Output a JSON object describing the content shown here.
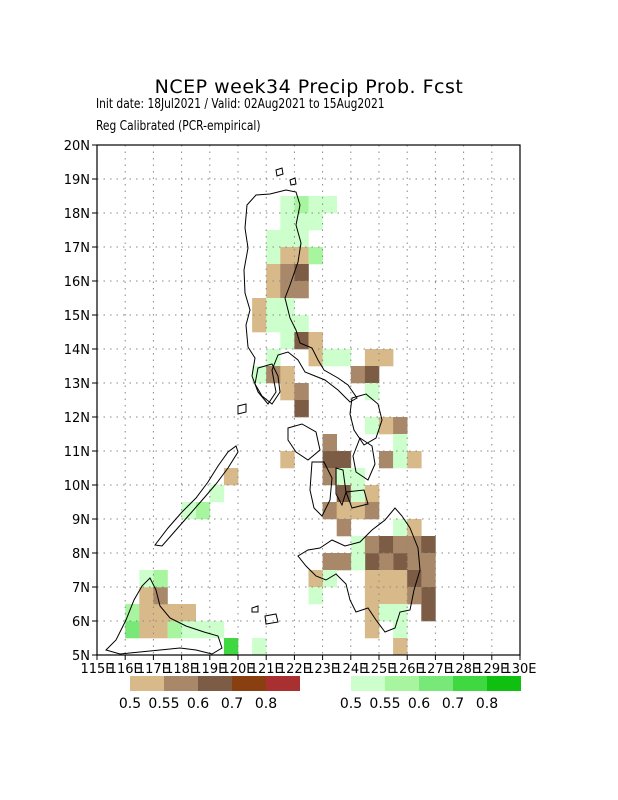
{
  "title": "NCEP week34 Precip Prob. Fcst",
  "subtitle_dates": "Init date: 18Jul2021 / Valid: 02Aug2021 to 15Aug2021",
  "subtitle_method": "Reg Calibrated (PCR-empirical)",
  "y_ticks": [
    "20N",
    "19N",
    "18N",
    "17N",
    "16N",
    "15N",
    "14N",
    "13N",
    "12N",
    "11N",
    "10N",
    "9N",
    "8N",
    "7N",
    "6N",
    "5N"
  ],
  "x_ticks": [
    "115E",
    "116E",
    "117E",
    "118E",
    "119E",
    "120E",
    "121E",
    "122E",
    "123E",
    "124E",
    "125E",
    "126E",
    "127E",
    "128E",
    "129E",
    "130E"
  ],
  "dry_legend": {
    "colors": [
      "#d8b98a",
      "#a88868",
      "#7c5c44",
      "#8a3f10",
      "#a83030"
    ],
    "labels": [
      "0.5",
      "0.55",
      "0.6",
      "0.7",
      "0.8"
    ]
  },
  "wet_legend": {
    "colors": [
      "#ccffcc",
      "#a8f5a0",
      "#78e878",
      "#40d840",
      "#10c010"
    ],
    "labels": [
      "0.5",
      "0.55",
      "0.6",
      "0.7",
      "0.8"
    ]
  },
  "chart_data": {
    "type": "heatmap",
    "lon_range": [
      115,
      130
    ],
    "lat_range": [
      5,
      20
    ],
    "cell_size_deg": 0.5,
    "levels": "1-5 dry probability classes, 6-10 wet probability classes",
    "cells": [
      [
        119.5,
        5.0,
        9
      ],
      [
        120.5,
        5.0,
        6
      ],
      [
        116.0,
        5.5,
        8
      ],
      [
        116.5,
        5.5,
        1
      ],
      [
        117.0,
        5.5,
        1
      ],
      [
        117.5,
        5.5,
        7
      ],
      [
        118.0,
        5.5,
        6
      ],
      [
        118.5,
        5.5,
        6
      ],
      [
        119.0,
        5.5,
        6
      ],
      [
        116.0,
        6.0,
        7
      ],
      [
        116.5,
        6.0,
        1
      ],
      [
        117.0,
        6.0,
        1
      ],
      [
        117.5,
        6.0,
        1
      ],
      [
        118.0,
        6.0,
        1
      ],
      [
        116.5,
        6.5,
        1
      ],
      [
        117.0,
        6.5,
        2
      ],
      [
        116.5,
        7.0,
        6
      ],
      [
        117.0,
        7.0,
        7
      ],
      [
        118.5,
        9.0,
        7
      ],
      [
        118.0,
        9.0,
        6
      ],
      [
        119.0,
        9.5,
        6
      ],
      [
        119.5,
        10.0,
        1
      ],
      [
        121.5,
        18.0,
        6
      ],
      [
        122.0,
        18.0,
        7
      ],
      [
        122.5,
        18.0,
        6
      ],
      [
        123.0,
        18.0,
        6
      ],
      [
        121.5,
        17.5,
        6
      ],
      [
        122.0,
        17.5,
        6
      ],
      [
        122.5,
        17.5,
        6
      ],
      [
        121.0,
        17.0,
        6
      ],
      [
        121.5,
        17.0,
        6
      ],
      [
        122.0,
        17.0,
        6
      ],
      [
        121.0,
        16.5,
        6
      ],
      [
        121.5,
        16.5,
        1
      ],
      [
        122.0,
        16.5,
        1
      ],
      [
        122.5,
        16.5,
        7
      ],
      [
        121.0,
        16.0,
        1
      ],
      [
        121.5,
        16.0,
        2
      ],
      [
        122.0,
        16.0,
        3
      ],
      [
        121.0,
        15.5,
        1
      ],
      [
        121.5,
        15.5,
        2
      ],
      [
        122.0,
        15.5,
        2
      ],
      [
        120.5,
        15.0,
        1
      ],
      [
        121.0,
        15.0,
        6
      ],
      [
        121.5,
        15.0,
        6
      ],
      [
        120.5,
        14.5,
        1
      ],
      [
        121.0,
        14.5,
        6
      ],
      [
        121.5,
        14.5,
        6
      ],
      [
        122.0,
        14.5,
        6
      ],
      [
        121.5,
        14.0,
        6
      ],
      [
        122.0,
        14.0,
        3
      ],
      [
        122.5,
        14.0,
        1
      ],
      [
        121.0,
        13.5,
        6
      ],
      [
        122.5,
        13.5,
        1
      ],
      [
        123.0,
        13.5,
        6
      ],
      [
        120.5,
        13.0,
        6
      ],
      [
        121.0,
        13.0,
        2
      ],
      [
        121.5,
        13.0,
        1
      ],
      [
        121.5,
        12.5,
        1
      ],
      [
        122.0,
        12.5,
        2
      ],
      [
        122.0,
        12.0,
        3
      ],
      [
        123.5,
        13.5,
        6
      ],
      [
        124.5,
        13.5,
        1
      ],
      [
        125.0,
        13.5,
        1
      ],
      [
        124.0,
        13.0,
        2
      ],
      [
        124.5,
        13.0,
        3
      ],
      [
        124.5,
        12.5,
        6
      ],
      [
        124.5,
        11.5,
        6
      ],
      [
        125.0,
        11.5,
        1
      ],
      [
        125.5,
        11.5,
        2
      ],
      [
        125.5,
        11.0,
        6
      ],
      [
        125.0,
        10.5,
        2
      ],
      [
        125.5,
        10.5,
        6
      ],
      [
        126.0,
        10.5,
        1
      ],
      [
        123.0,
        11.0,
        2
      ],
      [
        123.0,
        10.5,
        3
      ],
      [
        123.5,
        10.5,
        3
      ],
      [
        123.0,
        10.0,
        2
      ],
      [
        123.5,
        10.0,
        6
      ],
      [
        124.0,
        10.0,
        6
      ],
      [
        123.5,
        9.5,
        3
      ],
      [
        124.0,
        9.5,
        6
      ],
      [
        124.5,
        9.5,
        1
      ],
      [
        124.0,
        9.0,
        1
      ],
      [
        124.5,
        9.0,
        2
      ],
      [
        123.0,
        9.0,
        2
      ],
      [
        123.5,
        9.0,
        1
      ],
      [
        123.5,
        8.5,
        2
      ],
      [
        125.5,
        8.5,
        6
      ],
      [
        126.0,
        8.5,
        1
      ],
      [
        126.0,
        8.0,
        2
      ],
      [
        126.5,
        8.0,
        3
      ],
      [
        126.5,
        7.5,
        2
      ],
      [
        126.0,
        7.5,
        2
      ],
      [
        125.5,
        7.5,
        3
      ],
      [
        125.0,
        7.5,
        2
      ],
      [
        124.5,
        7.5,
        3
      ],
      [
        124.0,
        7.5,
        6
      ],
      [
        124.0,
        8.0,
        6
      ],
      [
        124.5,
        8.0,
        2
      ],
      [
        125.0,
        8.0,
        3
      ],
      [
        125.5,
        8.0,
        2
      ],
      [
        124.5,
        7.0,
        1
      ],
      [
        125.0,
        7.0,
        1
      ],
      [
        125.5,
        7.0,
        1
      ],
      [
        126.0,
        7.0,
        3
      ],
      [
        126.5,
        7.0,
        2
      ],
      [
        126.5,
        6.5,
        3
      ],
      [
        126.5,
        6.0,
        3
      ],
      [
        124.5,
        6.5,
        1
      ],
      [
        125.0,
        6.5,
        1
      ],
      [
        125.5,
        6.5,
        1
      ],
      [
        126.0,
        6.5,
        2
      ],
      [
        124.5,
        6.0,
        1
      ],
      [
        125.0,
        6.0,
        6
      ],
      [
        125.5,
        6.0,
        6
      ],
      [
        124.5,
        5.5,
        1
      ],
      [
        125.5,
        5.5,
        6
      ],
      [
        125.5,
        5.0,
        1
      ],
      [
        123.0,
        7.5,
        2
      ],
      [
        123.5,
        7.5,
        2
      ],
      [
        123.0,
        7.0,
        6
      ],
      [
        122.5,
        7.0,
        1
      ],
      [
        122.5,
        6.5,
        6
      ],
      [
        121.5,
        10.5,
        1
      ]
    ]
  }
}
